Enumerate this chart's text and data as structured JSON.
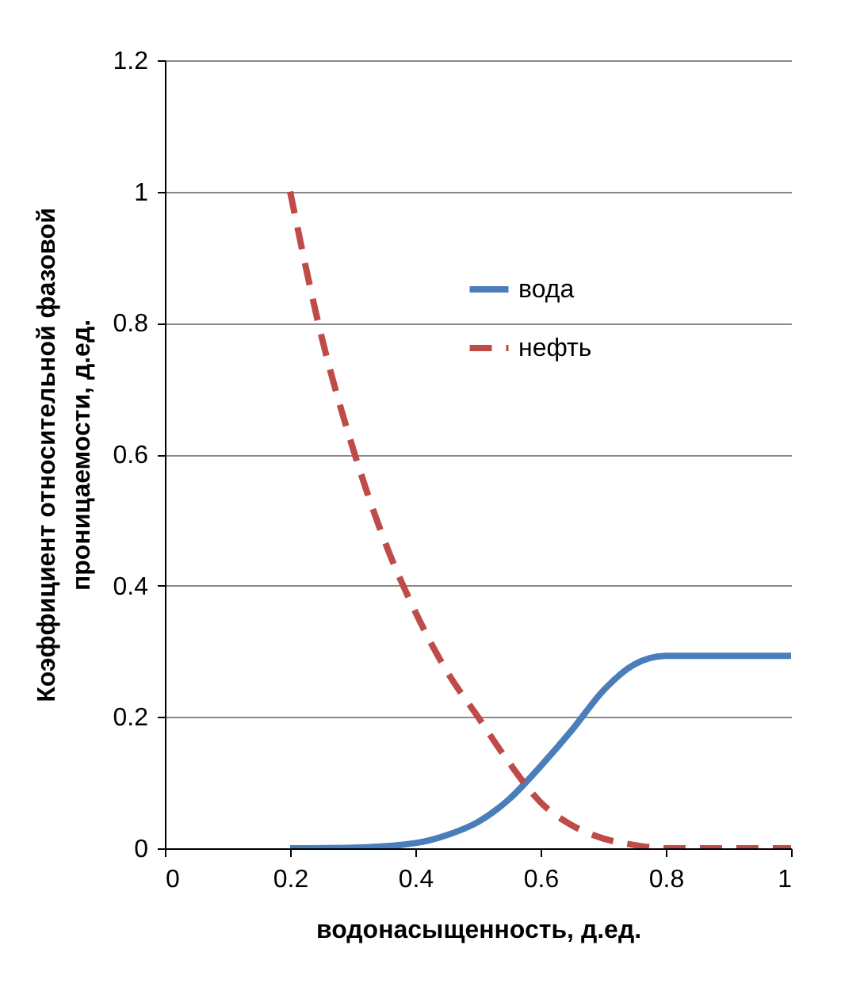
{
  "chart_data": {
    "type": "line",
    "xlabel": "водонасыщенность,  д.ед.",
    "ylabel": "Коэффициент относительной  фазовой\nпроницаемости,  д.ед.",
    "xlim": [
      0,
      1
    ],
    "xticks": [
      0,
      0.2,
      0.4,
      0.6,
      0.8,
      1
    ],
    "ylim": [
      0,
      1.2
    ],
    "yticks": [
      0,
      0.2,
      0.4,
      0.6,
      0.8,
      1,
      1.2
    ],
    "grid": "y",
    "legend": "top right",
    "series": [
      {
        "name": "вода",
        "color": "#4a7ebb",
        "line_style": "solid",
        "x": [
          0.2,
          0.3,
          0.4,
          0.45,
          0.5,
          0.55,
          0.6,
          0.65,
          0.7,
          0.75,
          0.8,
          0.9,
          1
        ],
        "values": [
          0,
          0.001,
          0.008,
          0.02,
          0.04,
          0.075,
          0.125,
          0.18,
          0.24,
          0.28,
          0.293,
          0.293,
          0.293
        ]
      },
      {
        "name": "нефть",
        "color": "#be4b48",
        "line_style": "dashed",
        "x": [
          0.2,
          0.25,
          0.3,
          0.35,
          0.4,
          0.45,
          0.5,
          0.55,
          0.6,
          0.65,
          0.7,
          0.75,
          0.8,
          1
        ],
        "values": [
          1,
          0.78,
          0.61,
          0.47,
          0.36,
          0.27,
          0.2,
          0.13,
          0.07,
          0.035,
          0.015,
          0.005,
          0,
          0
        ]
      }
    ]
  }
}
